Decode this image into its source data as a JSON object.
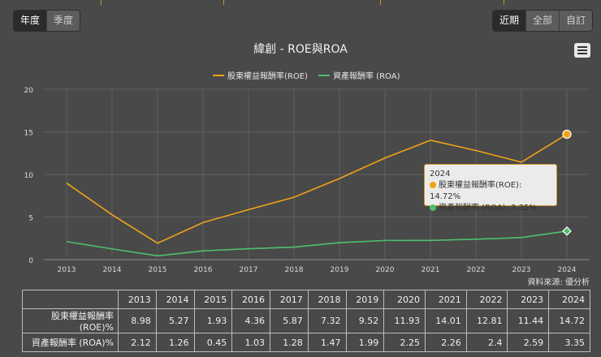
{
  "period_tabs": {
    "annual": "年度",
    "quarterly": "季度"
  },
  "range_tabs": {
    "recent": "近期",
    "all": "全部",
    "custom": "自訂"
  },
  "source_note": "資料來源: 優分析",
  "tooltip": {
    "year": "2024",
    "roe_text": "股東權益報酬率(ROE): 14.72%",
    "roa_text": "資產報酬率 (ROA): 3.35%"
  },
  "colors": {
    "roe": "#f0a318",
    "roa": "#4fbf6e",
    "background": "#494949"
  },
  "chart_data": {
    "type": "line",
    "title": "緯創 - ROE與ROA",
    "x": [
      "2013",
      "2014",
      "2015",
      "2016",
      "2017",
      "2018",
      "2019",
      "2020",
      "2021",
      "2022",
      "2023",
      "2024"
    ],
    "series": [
      {
        "name": "股東權益報酬率(ROE)",
        "values": [
          8.98,
          5.27,
          1.93,
          4.36,
          5.87,
          7.32,
          9.52,
          11.93,
          14.01,
          12.81,
          11.44,
          14.72
        ]
      },
      {
        "name": "資產報酬率 (ROA)",
        "values": [
          2.12,
          1.26,
          0.45,
          1.03,
          1.28,
          1.47,
          1.99,
          2.25,
          2.26,
          2.4,
          2.59,
          3.35
        ]
      }
    ],
    "yticks": [
      "0",
      "5",
      "10",
      "15",
      "20"
    ],
    "ylim": [
      0,
      20
    ],
    "grid": true,
    "legend_position": "top-center"
  },
  "table": {
    "row_labels": [
      "股東權益報酬率(ROE)%",
      "資產報酬率 (ROA)%"
    ],
    "years": [
      "2013",
      "2014",
      "2015",
      "2016",
      "2017",
      "2018",
      "2019",
      "2020",
      "2021",
      "2022",
      "2023",
      "2024"
    ],
    "rows": [
      [
        "8.98",
        "5.27",
        "1.93",
        "4.36",
        "5.87",
        "7.32",
        "9.52",
        "11.93",
        "14.01",
        "12.81",
        "11.44",
        "14.72"
      ],
      [
        "2.12",
        "1.26",
        "0.45",
        "1.03",
        "1.28",
        "1.47",
        "1.99",
        "2.25",
        "2.26",
        "2.4",
        "2.59",
        "3.35"
      ]
    ]
  }
}
